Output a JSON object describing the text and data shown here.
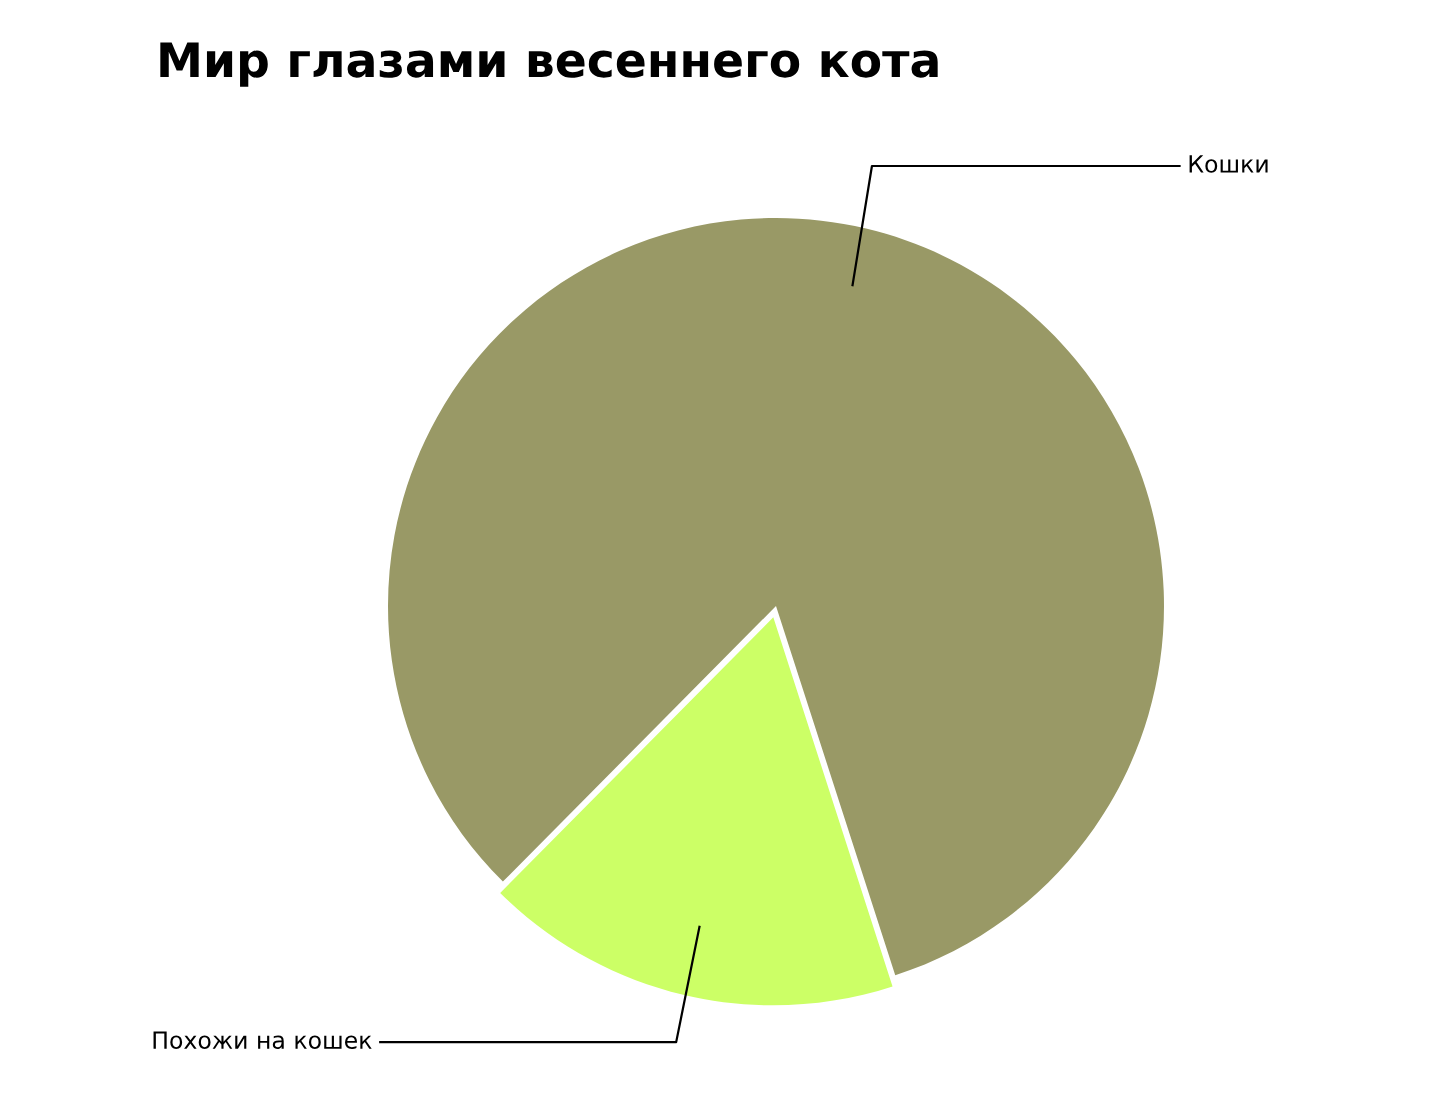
{
  "chart_data": {
    "type": "pie",
    "title": "Мир глазами весеннего кота",
    "categories": [
      "Кошки",
      "Похожи на кошек"
    ],
    "values": [
      82.6,
      17.4
    ],
    "colors": [
      "#999966",
      "#ccff66"
    ]
  }
}
